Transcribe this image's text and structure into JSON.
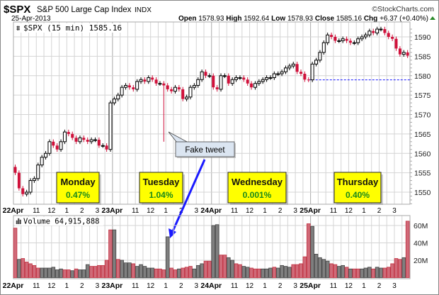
{
  "header": {
    "symbol": "$SPX",
    "name": "S&P 500 Large Cap Index",
    "exchange": "INDX",
    "brand": "©StockCharts.com",
    "date": "25-Apr-2013",
    "open_label": "Open",
    "open": "1578.93",
    "high_label": "High",
    "high": "1592.64",
    "low_label": "Low",
    "low": "1578.93",
    "close_label": "Close",
    "close": "1585.16",
    "chg_label": "Chg",
    "chg": "+6.37 (+0.40%)"
  },
  "colors": {
    "up": "#ffffff",
    "down": "#d0103a",
    "vol_up": "#7f7f7f",
    "vol_down": "#d06a78",
    "annotation": "#ffff00",
    "annotation_text": "#1a8a1a",
    "arrow": "#1a1aff",
    "grid": "#d4d4d4"
  },
  "chart_data": [
    {
      "type": "candlestick",
      "title": "$SPX (15 min) 1585.16",
      "ylim": [
        1546,
        1593
      ],
      "yticks": [
        "1550",
        "1555",
        "1560",
        "1565",
        "1570",
        "1575",
        "1580",
        "1585",
        "1590"
      ],
      "days": [
        "22Apr",
        "23Apr",
        "24Apr",
        "25Apr"
      ],
      "hour_ticks": [
        "11",
        "12",
        "1",
        "2",
        "3"
      ],
      "close": [
        1555,
        1551,
        1549.5,
        1550,
        1553,
        1553.5,
        1557,
        1559,
        1560,
        1563,
        1562,
        1561,
        1563,
        1565.5,
        1565,
        1564,
        1563,
        1564,
        1563.5,
        1563,
        1563.5,
        1563.5,
        1562,
        1562,
        1561,
        1573,
        1574,
        1575,
        1577,
        1577.5,
        1577,
        1576.5,
        1578.5,
        1579,
        1578.5,
        1579.5,
        1579,
        1578,
        1578,
        1577.5,
        1576.5,
        1576,
        1577,
        1576.5,
        1574,
        1574.5,
        1577,
        1577.5,
        1579,
        1581,
        1580,
        1580,
        1577,
        1576.5,
        1580,
        1580,
        1578,
        1579,
        1579.5,
        1579.5,
        1579,
        1578,
        1577,
        1578,
        1578.5,
        1579,
        1579.5,
        1579.5,
        1580.5,
        1580.5,
        1581,
        1582,
        1582.5,
        1583,
        1581,
        1580.5,
        1579,
        1578.93,
        1583,
        1584,
        1586,
        1588.5,
        1590.5,
        1590,
        1589,
        1589,
        1589.5,
        1589,
        1588.5,
        1588.5,
        1589.5,
        1590,
        1590.5,
        1591.5,
        1591,
        1592,
        1592,
        1591,
        1590,
        1589.5,
        1587,
        1585.5,
        1586,
        1585.16
      ],
      "first_open": 1556.5,
      "special_lows": {
        "39": 1563
      },
      "reference_line": 1578.93,
      "annotations": [
        {
          "day": "Monday",
          "change": "0.47%"
        },
        {
          "day": "Tuesday",
          "change": "1.04%"
        },
        {
          "day": "Wednesday",
          "change": "0.001%"
        },
        {
          "day": "Thursday",
          "change": "0.40%"
        }
      ],
      "callout": "Fake tweet"
    },
    {
      "type": "bar",
      "title": "Volume 64,915,888",
      "ylim": [
        0,
        68
      ],
      "yticks": [
        "20M",
        "40M",
        "60M"
      ],
      "values_millions": [
        57,
        21,
        22,
        18,
        16,
        14,
        11,
        11,
        11,
        11,
        12,
        9,
        10,
        9,
        9,
        8,
        10,
        9,
        9,
        15,
        13,
        13,
        14,
        14,
        20,
        55,
        55,
        21,
        20,
        17,
        17,
        16,
        13,
        15,
        13,
        11,
        11,
        10,
        10,
        9,
        47,
        11,
        9,
        10,
        11,
        12,
        13,
        10,
        14,
        16,
        19,
        19,
        60,
        61,
        26,
        26,
        23,
        20,
        16,
        15,
        13,
        12,
        11,
        10,
        10,
        10,
        10,
        11,
        12,
        11,
        14,
        13,
        12,
        15,
        15,
        16,
        24,
        62,
        59,
        27,
        23,
        21,
        19,
        16,
        15,
        13,
        14,
        12,
        10,
        10,
        10,
        10,
        11,
        12,
        10,
        12,
        11,
        11,
        12,
        16,
        22,
        21,
        23,
        65
      ],
      "colors": "rgrrrrrggggggrrgrgggrrrrrr|grgggrgggggrrrgrrgrrrgggrr|ggrrggrrggrrrgggrggggrrrrr|gggggrrggrgrrgggrggrrrrrgr"
    }
  ]
}
